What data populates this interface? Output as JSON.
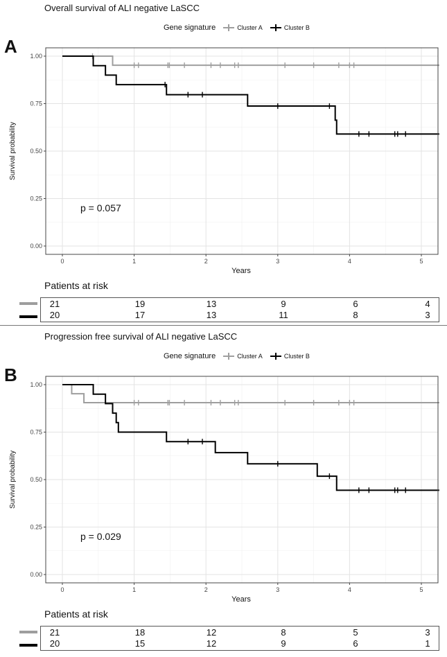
{
  "colors": {
    "cluster_a": "#9e9e9e",
    "cluster_b": "#000000"
  },
  "chart_data": [
    {
      "type": "line",
      "step": true,
      "panel_label": "A",
      "title": "Overall survival of ALI negative LaSCC",
      "xlabel": "Years",
      "ylabel": "Survival probability",
      "xlim": [
        0,
        5.25
      ],
      "ylim": [
        0,
        1
      ],
      "x_ticks": [
        "0",
        "1",
        "2",
        "3",
        "4",
        "5"
      ],
      "y_ticks": [
        "0.00",
        "0.25",
        "0.50",
        "0.75",
        "1.00"
      ],
      "grid": true,
      "legend_title": "Gene signature",
      "legend_position": "top",
      "annotation": "p = 0.057",
      "series": [
        {
          "name": "Cluster A",
          "x": [
            0,
            0.42,
            0.7,
            5.25
          ],
          "y": [
            1.0,
            1.0,
            0.952,
            0.952
          ],
          "censor_x": [
            0.42,
            1.0,
            1.06,
            1.47,
            1.49,
            1.7,
            2.07,
            2.2,
            2.4,
            2.45,
            3.1,
            3.5,
            3.85,
            4.0,
            4.06
          ],
          "censor_y": [
            1.0,
            0.952,
            0.952,
            0.952,
            0.952,
            0.952,
            0.952,
            0.952,
            0.952,
            0.952,
            0.952,
            0.952,
            0.952,
            0.952,
            0.952
          ]
        },
        {
          "name": "Cluster B",
          "x": [
            0,
            0.43,
            0.6,
            0.75,
            1.45,
            2.58,
            3.8,
            3.82,
            5.25
          ],
          "y": [
            1.0,
            0.95,
            0.9,
            0.85,
            0.797,
            0.737,
            0.663,
            0.59,
            0.59
          ],
          "censor_x": [
            1.43,
            1.75,
            1.95,
            3.0,
            3.72,
            4.13,
            4.27,
            4.63,
            4.67,
            4.78
          ],
          "censor_y": [
            0.85,
            0.797,
            0.797,
            0.737,
            0.737,
            0.59,
            0.59,
            0.59,
            0.59,
            0.59
          ]
        }
      ],
      "risk_table": {
        "title": "Patients at risk",
        "columns": [
          "0",
          "1",
          "2",
          "3",
          "4",
          "5"
        ],
        "rows": [
          {
            "group": "Cluster A",
            "values": [
              "21",
              "19",
              "13",
              "9",
              "6",
              "4"
            ]
          },
          {
            "group": "Cluster B",
            "values": [
              "20",
              "17",
              "13",
              "11",
              "8",
              "3"
            ]
          }
        ]
      }
    },
    {
      "type": "line",
      "step": true,
      "panel_label": "B",
      "title": "Progression free survival of ALI negative LaSCC",
      "xlabel": "Years",
      "ylabel": "Survival probability",
      "xlim": [
        0,
        5.25
      ],
      "ylim": [
        0,
        1
      ],
      "x_ticks": [
        "0",
        "1",
        "2",
        "3",
        "4",
        "5"
      ],
      "y_ticks": [
        "0.00",
        "0.25",
        "0.50",
        "0.75",
        "1.00"
      ],
      "grid": true,
      "legend_title": "Gene signature",
      "legend_position": "top",
      "annotation": "p = 0.029",
      "series": [
        {
          "name": "Cluster A",
          "x": [
            0,
            0.13,
            0.3,
            5.25
          ],
          "y": [
            1.0,
            0.952,
            0.905,
            0.905
          ],
          "censor_x": [
            1.0,
            1.06,
            1.47,
            1.49,
            1.7,
            2.07,
            2.2,
            2.4,
            2.45,
            3.1,
            3.5,
            3.85,
            4.0,
            4.06
          ],
          "censor_y": [
            0.905,
            0.905,
            0.905,
            0.905,
            0.905,
            0.905,
            0.905,
            0.905,
            0.905,
            0.905,
            0.905,
            0.905,
            0.905,
            0.905
          ]
        },
        {
          "name": "Cluster B",
          "x": [
            0,
            0.43,
            0.6,
            0.7,
            0.75,
            0.78,
            1.45,
            2.13,
            2.58,
            3.55,
            3.82,
            5.25
          ],
          "y": [
            1.0,
            0.95,
            0.9,
            0.85,
            0.8,
            0.75,
            0.7,
            0.642,
            0.583,
            0.518,
            0.444,
            0.444
          ],
          "censor_x": [
            1.75,
            1.95,
            3.0,
            3.72,
            4.13,
            4.27,
            4.63,
            4.67,
            4.78
          ],
          "censor_y": [
            0.7,
            0.7,
            0.583,
            0.518,
            0.444,
            0.444,
            0.444,
            0.444,
            0.444
          ]
        }
      ],
      "risk_table": {
        "title": "Patients at risk",
        "columns": [
          "0",
          "1",
          "2",
          "3",
          "4",
          "5"
        ],
        "rows": [
          {
            "group": "Cluster A",
            "values": [
              "21",
              "18",
              "12",
              "8",
              "5",
              "3"
            ]
          },
          {
            "group": "Cluster B",
            "values": [
              "20",
              "15",
              "12",
              "9",
              "6",
              "1"
            ]
          }
        ]
      }
    }
  ]
}
